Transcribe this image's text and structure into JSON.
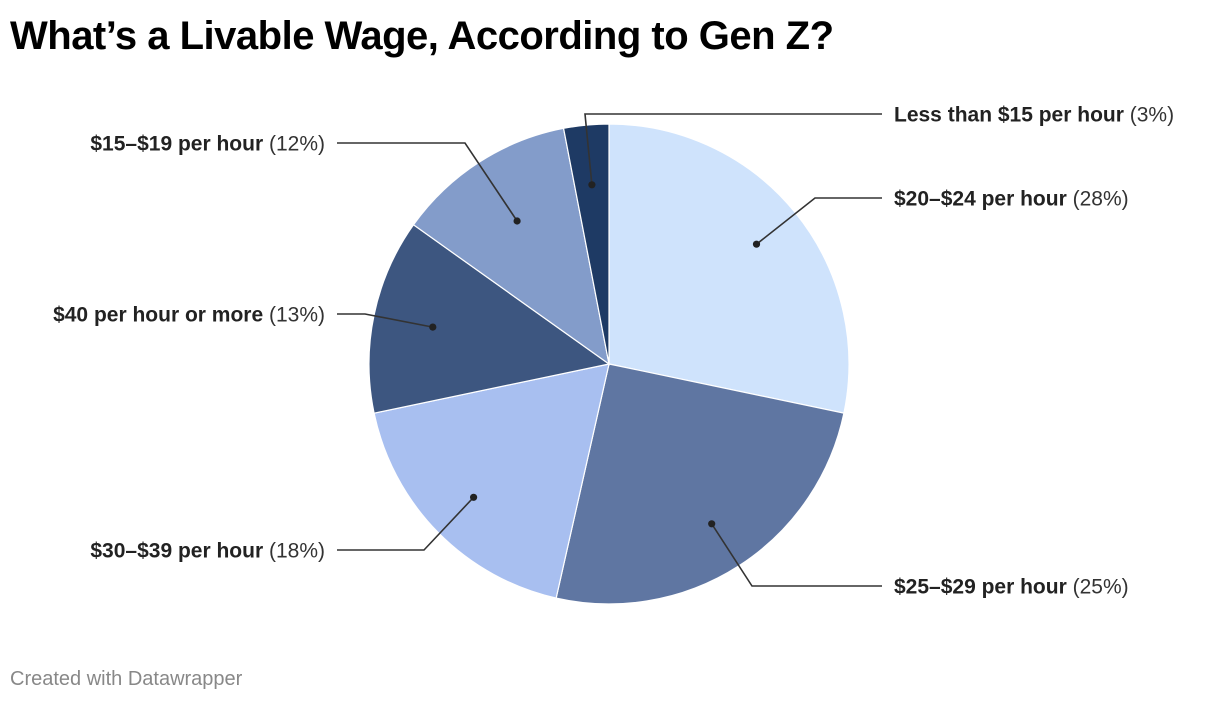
{
  "page": {
    "title": "What’s a Livable Wage, According to Gen Z?",
    "credit": "Created with Datawrapper"
  },
  "chart_data": {
    "type": "pie",
    "title": "What’s a Livable Wage, According to Gen Z?",
    "start_angle_deg": -90,
    "direction": "clockwise",
    "slices": [
      {
        "label": "$20–$24 per hour",
        "value": 28,
        "display": "(28%)",
        "color": "#cfe3fc"
      },
      {
        "label": "$25–$29 per hour",
        "value": 25,
        "display": "(25%)",
        "color": "#5f76a2"
      },
      {
        "label": "$30–$39 per hour",
        "value": 18,
        "display": "(18%)",
        "color": "#a8bff0"
      },
      {
        "label": "$40 per hour or more",
        "value": 13,
        "display": "(13%)",
        "color": "#3d5680"
      },
      {
        "label": "$15–$19 per hour",
        "value": 12,
        "display": "(12%)",
        "color": "#839cca"
      },
      {
        "label": "Less than $15 per hour",
        "value": 3,
        "display": "(3%)",
        "color": "#1e3a64"
      }
    ],
    "slice_border_color": "#ffffff",
    "leader_line_color": "#333333"
  }
}
